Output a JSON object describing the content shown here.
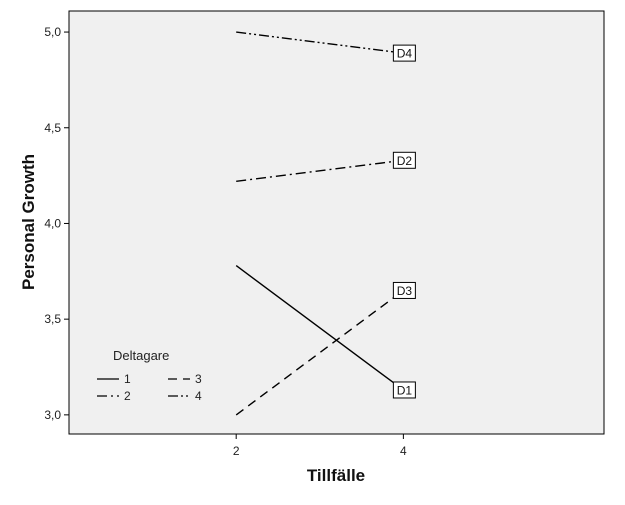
{
  "chart_data": {
    "type": "line",
    "xlabel": "Tillfälle",
    "ylabel": "Personal Growth",
    "x_ticks": [
      "2",
      "4"
    ],
    "y_ticks": [
      "3,0",
      "3,5",
      "4,0",
      "4,5",
      "5,0"
    ],
    "xlim": [
      0,
      6.4
    ],
    "ylim": [
      2.9,
      5.11
    ],
    "grid": false,
    "plot_background": "#f0f0f0",
    "legend": {
      "title": "Deltagare",
      "placement": "bottom-left",
      "entries": [
        "1",
        "2",
        "3",
        "4"
      ]
    },
    "series": [
      {
        "name": "1",
        "end_label": "D1",
        "x": [
          2,
          4
        ],
        "y": [
          3.78,
          3.13
        ],
        "dash": "solid"
      },
      {
        "name": "2",
        "end_label": "D2",
        "x": [
          2,
          4
        ],
        "y": [
          4.22,
          4.33
        ],
        "dash": "dashdot"
      },
      {
        "name": "3",
        "end_label": "D3",
        "x": [
          2,
          4
        ],
        "y": [
          3.0,
          3.65
        ],
        "dash": "dashed"
      },
      {
        "name": "4",
        "end_label": "D4",
        "x": [
          2,
          4
        ],
        "y": [
          5.0,
          4.89
        ],
        "dash": "dashdotdot"
      }
    ]
  }
}
